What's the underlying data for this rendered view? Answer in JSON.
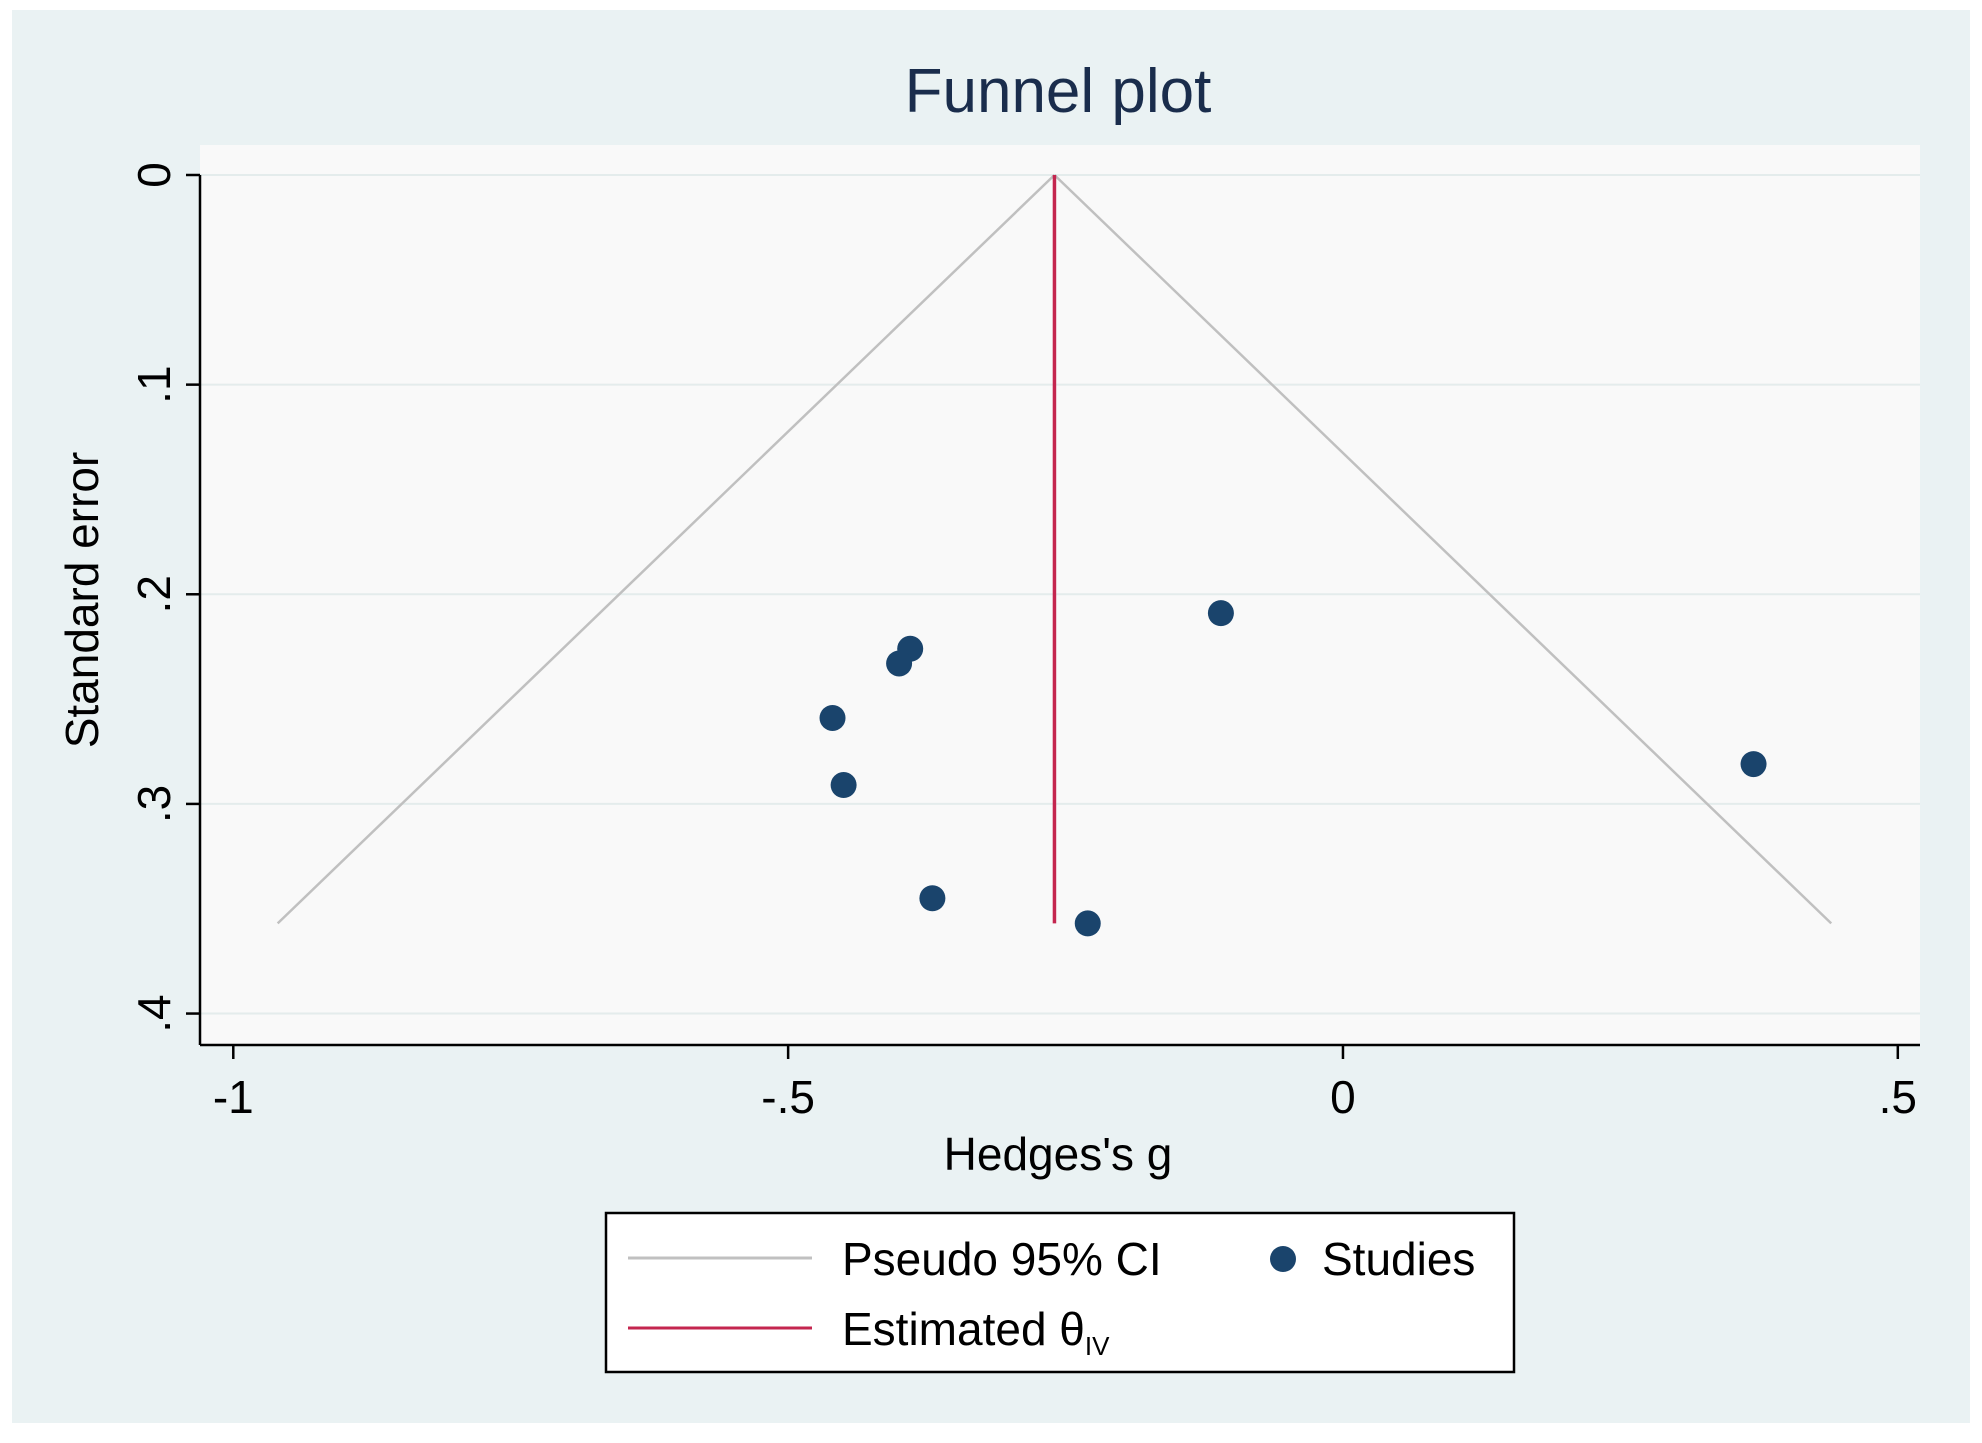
{
  "chart_data": {
    "type": "scatter",
    "title": "Funnel plot",
    "xlabel": "Hedges's g",
    "ylabel": "Standard error",
    "xlim": [
      -1.03,
      0.52
    ],
    "ylim": [
      0,
      0.415
    ],
    "y_reversed": true,
    "xticks": [
      -1,
      -0.5,
      0,
      0.5
    ],
    "xtick_labels": [
      "-1",
      "-.5",
      "0",
      ".5"
    ],
    "yticks": [
      0,
      0.1,
      0.2,
      0.3,
      0.4
    ],
    "ytick_labels": [
      "0",
      ".1",
      ".2",
      ".3",
      ".4"
    ],
    "grid": true,
    "estimate": -0.26,
    "max_se": 0.357,
    "pseudo_ci": {
      "label": "Pseudo 95% CI",
      "apex": [
        -0.26,
        0
      ],
      "left_base": [
        -0.96,
        0.357
      ],
      "right_base": [
        0.44,
        0.357
      ]
    },
    "series": [
      {
        "name": "Studies",
        "points": [
          {
            "x": -0.11,
            "y": 0.209
          },
          {
            "x": -0.39,
            "y": 0.226
          },
          {
            "x": -0.4,
            "y": 0.233
          },
          {
            "x": -0.46,
            "y": 0.259
          },
          {
            "x": -0.45,
            "y": 0.291
          },
          {
            "x": -0.37,
            "y": 0.345
          },
          {
            "x": -0.23,
            "y": 0.357
          },
          {
            "x": 0.37,
            "y": 0.281
          }
        ]
      }
    ],
    "legend": {
      "position": "bottom",
      "items": [
        {
          "label": "Pseudo 95% CI",
          "type": "line",
          "color": "#c0c0c0"
        },
        {
          "label": "Studies",
          "type": "marker",
          "color": "#1a446c"
        },
        {
          "label": "Estimated θ",
          "subscript": "IV",
          "type": "line",
          "color": "#c4264f"
        }
      ]
    },
    "colors": {
      "outer_background": "#eaf2f3",
      "plot_background": "#f9f9f9",
      "grid": "#e4ecec",
      "ci_line": "#c0c0c0",
      "estimate_line": "#c4264f",
      "marker": "#1a446c",
      "title": "#1a2d4c"
    }
  }
}
